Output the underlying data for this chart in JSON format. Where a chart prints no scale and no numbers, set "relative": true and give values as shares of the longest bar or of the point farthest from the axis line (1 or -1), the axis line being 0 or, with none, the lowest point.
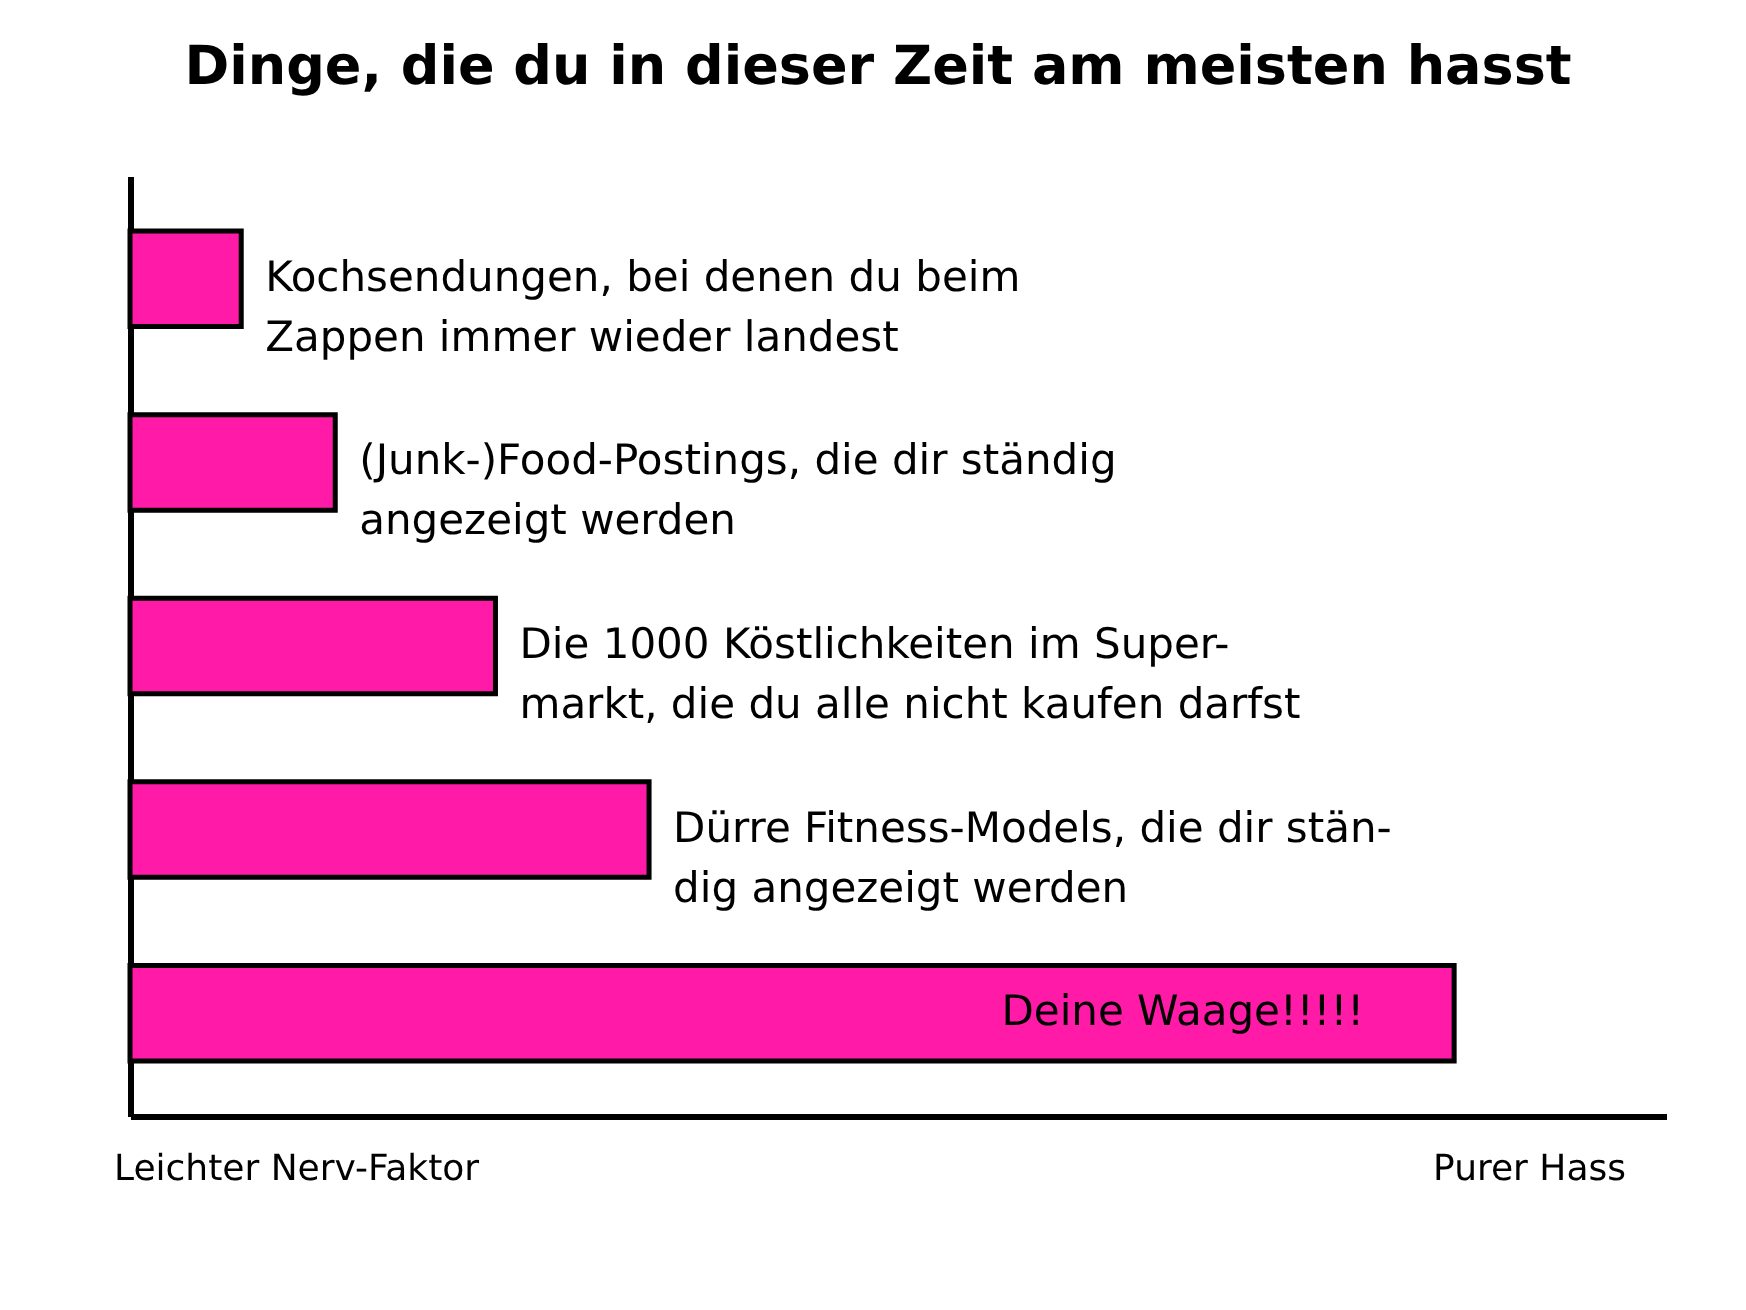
{
  "chart_data": {
    "type": "bar",
    "orientation": "horizontal",
    "relative": true,
    "title": "Dinge, die du in dieser Zeit am meisten hasst",
    "categories": [
      "Kochsendungen, bei denen du beim\nZappen immer wieder landest",
      "(Junk-)Food-Postings, die dir ständig\nangezeigt werden",
      "Die 1000 Köstlichkeiten im Super-\nmarkt, die du alle nicht kaufen darfst",
      "Dürre Fitness-Models, die dir stän-\ndig angezeigt werden",
      "Deine Waage!!!!!"
    ],
    "values": [
      0.084,
      0.155,
      0.276,
      0.392,
      1
    ],
    "color": "#ff1aa8",
    "annotations": [
      "Leichter Nerv-Faktor",
      "Purer Hass"
    ]
  }
}
